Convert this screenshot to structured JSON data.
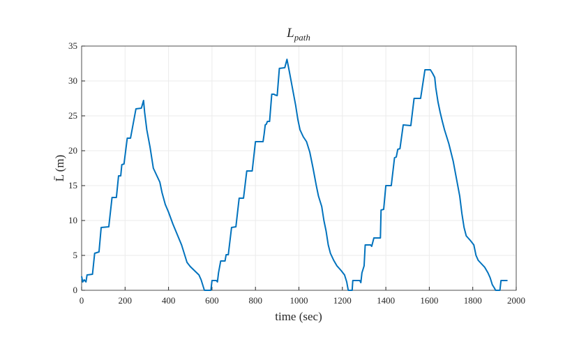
{
  "chart_data": {
    "type": "line",
    "title": {
      "main": "L",
      "sub": "path"
    },
    "xlabel": "time (sec)",
    "ylabel": "L̄ (m)",
    "xlim": [
      0,
      2000
    ],
    "xticks": [
      0,
      200,
      400,
      600,
      800,
      1000,
      1200,
      1400,
      1600,
      1800,
      2000
    ],
    "ylim": [
      0,
      35
    ],
    "yticks": [
      0,
      5,
      10,
      15,
      20,
      25,
      30,
      35
    ],
    "grid": true,
    "series": [
      {
        "color": "#0072bd",
        "x": [
          0,
          5,
          12,
          20,
          25,
          50,
          60,
          70,
          80,
          90,
          125,
          140,
          160,
          170,
          180,
          185,
          195,
          210,
          225,
          250,
          275,
          285,
          290,
          300,
          315,
          330,
          345,
          360,
          370,
          385,
          400,
          420,
          440,
          460,
          475,
          485,
          500,
          520,
          540,
          550,
          560,
          565,
          595,
          600,
          620,
          625,
          630,
          640,
          660,
          665,
          675,
          690,
          710,
          725,
          745,
          760,
          785,
          800,
          835,
          840,
          845,
          850,
          855,
          865,
          875,
          885,
          890,
          900,
          910,
          935,
          945,
          955,
          970,
          985,
          995,
          1005,
          1020,
          1035,
          1050,
          1065,
          1080,
          1090,
          1105,
          1115,
          1125,
          1135,
          1145,
          1160,
          1175,
          1195,
          1210,
          1220,
          1227,
          1245,
          1248,
          1280,
          1285,
          1290,
          1300,
          1305,
          1330,
          1335,
          1345,
          1375,
          1378,
          1390,
          1400,
          1425,
          1440,
          1448,
          1455,
          1465,
          1480,
          1515,
          1530,
          1560,
          1580,
          1605,
          1615,
          1625,
          1630,
          1640,
          1650,
          1660,
          1670,
          1690,
          1710,
          1725,
          1740,
          1750,
          1760,
          1770,
          1790,
          1805,
          1815,
          1825,
          1840,
          1855,
          1870,
          1880,
          1890,
          1900,
          1905,
          1925,
          1930,
          1960
        ],
        "values": [
          2.0,
          1.2,
          1.5,
          1.2,
          2.2,
          2.3,
          5.3,
          5.4,
          5.5,
          9.0,
          9.1,
          13.3,
          13.3,
          16.4,
          16.4,
          18.0,
          18.1,
          21.8,
          21.8,
          26.0,
          26.1,
          27.2,
          25.5,
          23,
          20.5,
          17.5,
          16.5,
          15.5,
          14,
          12.3,
          11.2,
          9.5,
          8,
          6.5,
          5,
          4,
          3.4,
          2.8,
          2.2,
          1.5,
          0.5,
          0,
          0,
          1.4,
          1.4,
          1.2,
          2.5,
          4.2,
          4.2,
          5.1,
          5.1,
          9.0,
          9.1,
          13.2,
          13.2,
          17.1,
          17.1,
          21.3,
          21.3,
          22.4,
          23.7,
          23.8,
          24.2,
          24.2,
          28.1,
          28.1,
          28,
          27.9,
          31.8,
          31.9,
          33.1,
          31.5,
          29,
          26.5,
          24.5,
          23,
          22,
          21.3,
          19.8,
          17.5,
          15,
          13.5,
          12,
          10,
          8.5,
          6.5,
          5.3,
          4.3,
          3.5,
          2.8,
          2.2,
          1.2,
          0,
          0,
          1.4,
          1.4,
          1.1,
          2.5,
          3.5,
          6.5,
          6.5,
          6.3,
          7.5,
          7.5,
          11.5,
          11.6,
          15.0,
          15.0,
          19.0,
          19.1,
          20.2,
          20.3,
          23.7,
          23.6,
          27.5,
          27.5,
          31.6,
          31.6,
          31.1,
          30.5,
          29,
          27,
          25.5,
          24.2,
          23,
          21,
          18.5,
          16,
          13.5,
          11,
          9,
          7.8,
          7.1,
          6.5,
          5,
          4.3,
          3.8,
          3.3,
          2.5,
          1.8,
          0.8,
          0.3,
          0,
          0,
          1.4,
          1.4
        ]
      }
    ]
  }
}
